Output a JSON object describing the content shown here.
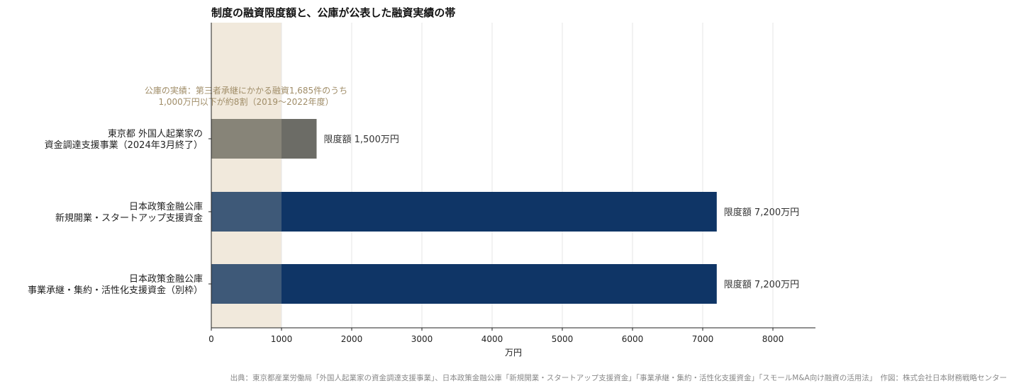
{
  "chart_data": {
    "type": "bar",
    "orientation": "horizontal",
    "title": "制度の融資限度額と、公庫が公表した融資実績の帯",
    "xlabel": "万円",
    "ylabel": "",
    "xlim": [
      0,
      8600
    ],
    "xticks": [
      "0",
      "1000",
      "2000",
      "3000",
      "4000",
      "5000",
      "6000",
      "7000",
      "8000"
    ],
    "grid": "vertical",
    "categories": [
      [
        "日本政策金融公庫",
        "事業承継・集約・活性化支援資金（別枠）"
      ],
      [
        "日本政策金融公庫",
        "新規開業・スタートアップ支援資金"
      ],
      [
        "東京都 外国人起業家の",
        "資金調達支援事業（2024年3月終了）"
      ]
    ],
    "values": [
      7200,
      7200,
      1500
    ],
    "bar_colors": [
      "#0f3566",
      "#0f3566",
      "#6c6c66"
    ],
    "data_labels": [
      "限度額 7,200万円",
      "限度額 7,200万円",
      "限度額 1,500万円"
    ],
    "band": {
      "from": 0,
      "to": 1000,
      "color": "#f1e9dc",
      "label": [
        "公庫の実績：第三者承継にかかる融資1,685件のうち",
        "1,000万円以下が約8割（2019〜2022年度）"
      ]
    },
    "source": "出典：東京都産業労働局「外国人起業家の資金調達支援事業」、日本政策金融公庫「新規開業・スタートアップ支援資金」「事業承継・集約・活性化支援資金」「スモールM&A向け融資の活用法」　作図：株式会社日本財務戦略センター"
  }
}
